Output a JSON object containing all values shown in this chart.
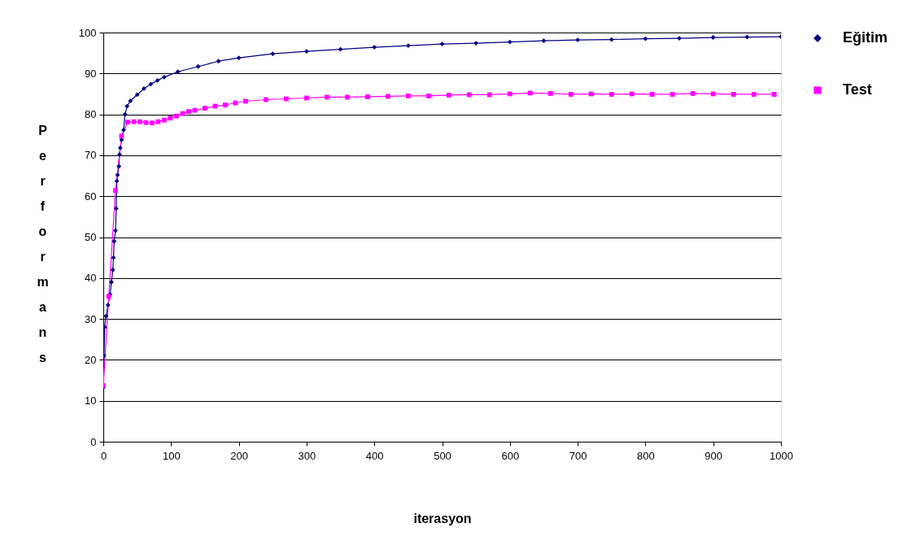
{
  "chart_data": {
    "type": "line",
    "xlabel": "iterasyon",
    "ylabel": "Performans",
    "xlim": [
      0,
      1000
    ],
    "xticks": [
      0,
      100,
      200,
      300,
      400,
      500,
      600,
      700,
      800,
      900,
      1000
    ],
    "ylim": [
      0,
      100
    ],
    "yticks": [
      0,
      10,
      20,
      30,
      40,
      50,
      60,
      70,
      80,
      90,
      100
    ],
    "grid": "y",
    "legend": "right",
    "line_style": "solid",
    "series": [
      {
        "name": "Eğitim",
        "color": "#000080",
        "marker": "diamond",
        "x": [
          0,
          1,
          2,
          4,
          7,
          10,
          12,
          14,
          15,
          16,
          18,
          19,
          20,
          21,
          23,
          24,
          25,
          27,
          30,
          32,
          35,
          40,
          50,
          60,
          70,
          80,
          90,
          110,
          140,
          170,
          200,
          250,
          300,
          350,
          400,
          450,
          500,
          550,
          600,
          650,
          700,
          750,
          800,
          850,
          900,
          950,
          1000
        ],
        "values": [
          13.2,
          21,
          28,
          30.7,
          33.4,
          36,
          39,
          42,
          45,
          49,
          51.6,
          57,
          63.7,
          65.2,
          67.3,
          70.2,
          71.8,
          73.8,
          76.2,
          80,
          82,
          83.3,
          84.8,
          86.3,
          87.4,
          88.3,
          89.1,
          90.4,
          91.7,
          93,
          93.8,
          94.8,
          95.4,
          95.9,
          96.4,
          96.8,
          97.2,
          97.4,
          97.7,
          98,
          98.2,
          98.3,
          98.5,
          98.6,
          98.8,
          98.9,
          99
        ]
      },
      {
        "name": "Test",
        "color": "#ff00ff",
        "marker": "square",
        "x": [
          0,
          8,
          18,
          27,
          36,
          45,
          54,
          63,
          72,
          81,
          90,
          99,
          108,
          117,
          126,
          135,
          150,
          165,
          180,
          195,
          210,
          240,
          270,
          300,
          330,
          360,
          390,
          420,
          450,
          480,
          510,
          540,
          570,
          600,
          630,
          660,
          690,
          720,
          750,
          780,
          810,
          840,
          870,
          900,
          930,
          960,
          990
        ],
        "values": [
          13.7,
          35.5,
          61.4,
          74.7,
          78.1,
          78.2,
          78.2,
          78,
          77.9,
          78.2,
          78.6,
          79.1,
          79.6,
          80.2,
          80.7,
          81,
          81.5,
          82,
          82.3,
          82.8,
          83.2,
          83.6,
          83.8,
          84,
          84.2,
          84.2,
          84.3,
          84.4,
          84.5,
          84.5,
          84.7,
          84.8,
          84.8,
          85,
          85.2,
          85.1,
          84.9,
          85,
          84.9,
          85,
          84.9,
          84.9,
          85.1,
          85,
          84.9,
          84.9,
          84.9
        ]
      }
    ]
  }
}
